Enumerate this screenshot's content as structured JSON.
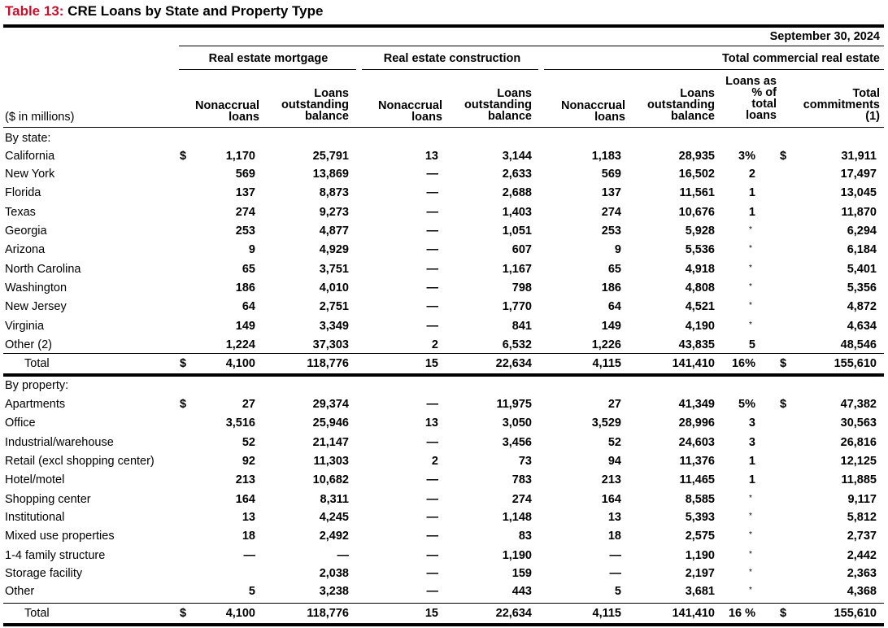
{
  "title": {
    "number": "Table 13:",
    "text": "CRE Loans by State and Property Type"
  },
  "date": "September 30, 2024",
  "units": "($ in millions)",
  "groups": {
    "mortgage": "Real estate mortgage",
    "construction": "Real estate construction",
    "total": "Total commercial real estate"
  },
  "col_headers": {
    "nonaccrual": [
      "Nonaccrual",
      "loans"
    ],
    "outstanding": [
      "Loans",
      "outstanding",
      "balance"
    ],
    "pct": [
      "Loans as",
      "% of",
      "total",
      "loans"
    ],
    "commit": [
      "Total",
      "commitments",
      "(1)"
    ]
  },
  "sections": [
    {
      "heading": "By state:",
      "rows": [
        {
          "label": "California",
          "m_na": "1,170",
          "m_bal": "25,791",
          "c_na": "13",
          "c_bal": "3,144",
          "t_na": "1,183",
          "t_bal": "28,935",
          "pct": "3%",
          "commit": "31,911",
          "dollar": "$"
        },
        {
          "label": "New York",
          "m_na": "569",
          "m_bal": "13,869",
          "c_na": "—",
          "c_bal": "2,633",
          "t_na": "569",
          "t_bal": "16,502",
          "pct": "2",
          "commit": "17,497"
        },
        {
          "label": "Florida",
          "m_na": "137",
          "m_bal": "8,873",
          "c_na": "—",
          "c_bal": "2,688",
          "t_na": "137",
          "t_bal": "11,561",
          "pct": "1",
          "commit": "13,045"
        },
        {
          "label": "Texas",
          "m_na": "274",
          "m_bal": "9,273",
          "c_na": "—",
          "c_bal": "1,403",
          "t_na": "274",
          "t_bal": "10,676",
          "pct": "1",
          "commit": "11,870"
        },
        {
          "label": "Georgia",
          "m_na": "253",
          "m_bal": "4,877",
          "c_na": "—",
          "c_bal": "1,051",
          "t_na": "253",
          "t_bal": "5,928",
          "pct": "*",
          "commit": "6,294"
        },
        {
          "label": "Arizona",
          "m_na": "9",
          "m_bal": "4,929",
          "c_na": "—",
          "c_bal": "607",
          "t_na": "9",
          "t_bal": "5,536",
          "pct": "*",
          "commit": "6,184"
        },
        {
          "label": "North Carolina",
          "m_na": "65",
          "m_bal": "3,751",
          "c_na": "—",
          "c_bal": "1,167",
          "t_na": "65",
          "t_bal": "4,918",
          "pct": "*",
          "commit": "5,401"
        },
        {
          "label": "Washington",
          "m_na": "186",
          "m_bal": "4,010",
          "c_na": "—",
          "c_bal": "798",
          "t_na": "186",
          "t_bal": "4,808",
          "pct": "*",
          "commit": "5,356"
        },
        {
          "label": "New Jersey",
          "m_na": "64",
          "m_bal": "2,751",
          "c_na": "—",
          "c_bal": "1,770",
          "t_na": "64",
          "t_bal": "4,521",
          "pct": "*",
          "commit": "4,872"
        },
        {
          "label": "Virginia",
          "m_na": "149",
          "m_bal": "3,349",
          "c_na": "—",
          "c_bal": "841",
          "t_na": "149",
          "t_bal": "4,190",
          "pct": "*",
          "commit": "4,634"
        },
        {
          "label": "Other (2)",
          "m_na": "1,224",
          "m_bal": "37,303",
          "c_na": "2",
          "c_bal": "6,532",
          "t_na": "1,226",
          "t_bal": "43,835",
          "pct": "5",
          "commit": "48,546"
        }
      ],
      "total": {
        "label": "Total",
        "m_na": "4,100",
        "m_bal": "118,776",
        "c_na": "15",
        "c_bal": "22,634",
        "t_na": "4,115",
        "t_bal": "141,410",
        "pct": "16%",
        "commit": "155,610",
        "dollar": "$"
      }
    },
    {
      "heading": "By property:",
      "rows": [
        {
          "label": "Apartments",
          "m_na": "27",
          "m_bal": "29,374",
          "c_na": "—",
          "c_bal": "11,975",
          "t_na": "27",
          "t_bal": "41,349",
          "pct": "5%",
          "commit": "47,382",
          "dollar": "$"
        },
        {
          "label": "Office",
          "m_na": "3,516",
          "m_bal": "25,946",
          "c_na": "13",
          "c_bal": "3,050",
          "t_na": "3,529",
          "t_bal": "28,996",
          "pct": "3",
          "commit": "30,563"
        },
        {
          "label": "Industrial/warehouse",
          "m_na": "52",
          "m_bal": "21,147",
          "c_na": "—",
          "c_bal": "3,456",
          "t_na": "52",
          "t_bal": "24,603",
          "pct": "3",
          "commit": "26,816"
        },
        {
          "label": "Retail (excl shopping center)",
          "m_na": "92",
          "m_bal": "11,303",
          "c_na": "2",
          "c_bal": "73",
          "t_na": "94",
          "t_bal": "11,376",
          "pct": "1",
          "commit": "12,125"
        },
        {
          "label": "Hotel/motel",
          "m_na": "213",
          "m_bal": "10,682",
          "c_na": "—",
          "c_bal": "783",
          "t_na": "213",
          "t_bal": "11,465",
          "pct": "1",
          "commit": "11,885"
        },
        {
          "label": "Shopping center",
          "m_na": "164",
          "m_bal": "8,311",
          "c_na": "—",
          "c_bal": "274",
          "t_na": "164",
          "t_bal": "8,585",
          "pct": "*",
          "commit": "9,117"
        },
        {
          "label": "Institutional",
          "m_na": "13",
          "m_bal": "4,245",
          "c_na": "—",
          "c_bal": "1,148",
          "t_na": "13",
          "t_bal": "5,393",
          "pct": "*",
          "commit": "5,812"
        },
        {
          "label": "Mixed use properties",
          "m_na": "18",
          "m_bal": "2,492",
          "c_na": "—",
          "c_bal": "83",
          "t_na": "18",
          "t_bal": "2,575",
          "pct": "*",
          "commit": "2,737"
        },
        {
          "label": "1-4 family structure",
          "m_na": "—",
          "m_bal": "—",
          "c_na": "—",
          "c_bal": "1,190",
          "t_na": "—",
          "t_bal": "1,190",
          "pct": "*",
          "commit": "2,442"
        },
        {
          "label": "Storage facility",
          "m_na": "",
          "m_bal": "2,038",
          "c_na": "—",
          "c_bal": "159",
          "t_na": "—",
          "t_bal": "2,197",
          "pct": "*",
          "commit": "2,363"
        },
        {
          "label": "Other",
          "m_na": "5",
          "m_bal": "3,238",
          "c_na": "—",
          "c_bal": "443",
          "t_na": "5",
          "t_bal": "3,681",
          "pct": "*",
          "commit": "4,368"
        }
      ],
      "total": {
        "label": "Total",
        "m_na": "4,100",
        "m_bal": "118,776",
        "c_na": "15",
        "c_bal": "22,634",
        "t_na": "4,115",
        "t_bal": "141,410",
        "pct": "16 %",
        "commit": "155,610",
        "dollar": "$"
      }
    }
  ]
}
